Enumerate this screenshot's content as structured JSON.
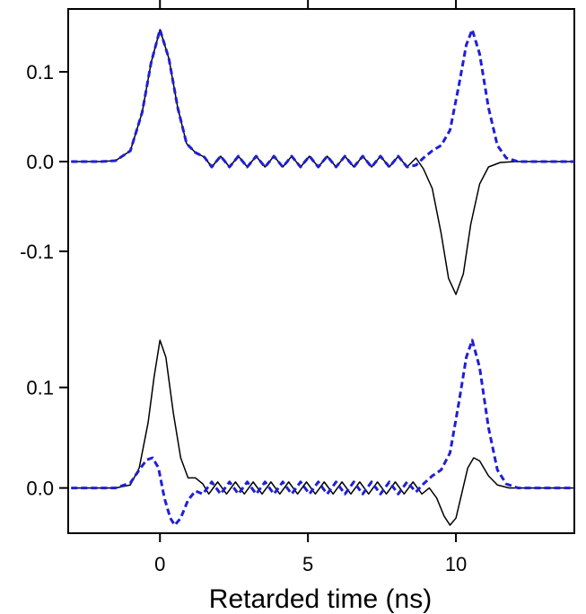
{
  "chart_data": {
    "type": "line",
    "xlabel": "Retarded time (ns)",
    "xlim": [
      -3.1,
      14.0
    ],
    "x_ticks": [
      0,
      5,
      10
    ],
    "panels": [
      {
        "ylim": [
          -0.19,
          0.17
        ],
        "y_ticks": [
          0.1,
          0.0,
          -0.1
        ],
        "series": [
          {
            "color": "#000000",
            "style": "solid",
            "points": [
              [
                -3.0,
                0
              ],
              [
                -2.0,
                0
              ],
              [
                -1.5,
                0.001
              ],
              [
                -1.0,
                0.012
              ],
              [
                -0.6,
                0.055
              ],
              [
                -0.3,
                0.11
              ],
              [
                0.0,
                0.147
              ],
              [
                0.3,
                0.115
              ],
              [
                0.6,
                0.06
              ],
              [
                0.9,
                0.02
              ],
              [
                1.2,
                0.01
              ],
              [
                1.5,
                0.005
              ],
              [
                1.75,
                -0.006
              ],
              [
                2.05,
                0.006
              ],
              [
                2.35,
                -0.006
              ],
              [
                2.65,
                0.006
              ],
              [
                2.95,
                -0.006
              ],
              [
                3.25,
                0.006
              ],
              [
                3.55,
                -0.006
              ],
              [
                3.85,
                0.006
              ],
              [
                4.15,
                -0.006
              ],
              [
                4.45,
                0.006
              ],
              [
                4.75,
                -0.006
              ],
              [
                5.05,
                0.006
              ],
              [
                5.35,
                -0.006
              ],
              [
                5.65,
                0.006
              ],
              [
                5.95,
                -0.006
              ],
              [
                6.25,
                0.006
              ],
              [
                6.55,
                -0.006
              ],
              [
                6.85,
                0.006
              ],
              [
                7.15,
                -0.006
              ],
              [
                7.45,
                0.006
              ],
              [
                7.75,
                -0.006
              ],
              [
                8.05,
                0.006
              ],
              [
                8.35,
                -0.006
              ],
              [
                8.65,
                0.004
              ],
              [
                8.9,
                -0.008
              ],
              [
                9.2,
                -0.03
              ],
              [
                9.5,
                -0.08
              ],
              [
                9.75,
                -0.13
              ],
              [
                10.0,
                -0.148
              ],
              [
                10.25,
                -0.125
              ],
              [
                10.5,
                -0.07
              ],
              [
                10.8,
                -0.025
              ],
              [
                11.1,
                -0.006
              ],
              [
                11.5,
                -0.001
              ],
              [
                12.0,
                0
              ],
              [
                14.0,
                0
              ]
            ]
          },
          {
            "color": "#1f1fd6",
            "style": "dashed",
            "points": [
              [
                -3.0,
                0
              ],
              [
                -2.0,
                0
              ],
              [
                -1.5,
                0.001
              ],
              [
                -1.0,
                0.012
              ],
              [
                -0.6,
                0.055
              ],
              [
                -0.3,
                0.11
              ],
              [
                0.0,
                0.147
              ],
              [
                0.3,
                0.115
              ],
              [
                0.6,
                0.06
              ],
              [
                0.9,
                0.02
              ],
              [
                1.2,
                0.01
              ],
              [
                1.5,
                0.005
              ],
              [
                1.75,
                -0.006
              ],
              [
                2.05,
                0.006
              ],
              [
                2.35,
                -0.006
              ],
              [
                2.65,
                0.006
              ],
              [
                2.95,
                -0.006
              ],
              [
                3.25,
                0.006
              ],
              [
                3.55,
                -0.006
              ],
              [
                3.85,
                0.006
              ],
              [
                4.15,
                -0.006
              ],
              [
                4.45,
                0.006
              ],
              [
                4.75,
                -0.006
              ],
              [
                5.05,
                0.006
              ],
              [
                5.35,
                -0.006
              ],
              [
                5.65,
                0.006
              ],
              [
                5.95,
                -0.006
              ],
              [
                6.25,
                0.006
              ],
              [
                6.55,
                -0.006
              ],
              [
                6.85,
                0.006
              ],
              [
                7.15,
                -0.006
              ],
              [
                7.45,
                0.006
              ],
              [
                7.75,
                -0.006
              ],
              [
                8.05,
                0.006
              ],
              [
                8.35,
                -0.006
              ],
              [
                8.65,
                -0.004
              ],
              [
                8.9,
                0.004
              ],
              [
                9.2,
                0.012
              ],
              [
                9.5,
                0.018
              ],
              [
                9.8,
                0.035
              ],
              [
                10.1,
                0.085
              ],
              [
                10.35,
                0.13
              ],
              [
                10.55,
                0.147
              ],
              [
                10.8,
                0.12
              ],
              [
                11.1,
                0.06
              ],
              [
                11.4,
                0.018
              ],
              [
                11.7,
                0.004
              ],
              [
                12.1,
                0
              ],
              [
                14.0,
                0
              ]
            ]
          }
        ]
      },
      {
        "ylim": [
          -0.045,
          0.155
        ],
        "y_ticks": [
          0.1,
          0.0
        ],
        "series": [
          {
            "color": "#000000",
            "style": "solid",
            "points": [
              [
                -3.0,
                0
              ],
              [
                -1.5,
                0
              ],
              [
                -1.0,
                0.003
              ],
              [
                -0.7,
                0.02
              ],
              [
                -0.4,
                0.065
              ],
              [
                -0.2,
                0.11
              ],
              [
                0.0,
                0.147
              ],
              [
                0.2,
                0.13
              ],
              [
                0.45,
                0.075
              ],
              [
                0.7,
                0.03
              ],
              [
                0.95,
                0.01
              ],
              [
                1.2,
                0.01
              ],
              [
                1.45,
                0.004
              ],
              [
                1.65,
                -0.006
              ],
              [
                1.95,
                0.006
              ],
              [
                2.25,
                -0.006
              ],
              [
                2.55,
                0.006
              ],
              [
                2.85,
                -0.006
              ],
              [
                3.15,
                0.006
              ],
              [
                3.45,
                -0.006
              ],
              [
                3.75,
                0.006
              ],
              [
                4.05,
                -0.006
              ],
              [
                4.35,
                0.006
              ],
              [
                4.65,
                -0.006
              ],
              [
                4.95,
                0.006
              ],
              [
                5.25,
                -0.006
              ],
              [
                5.55,
                0.006
              ],
              [
                5.85,
                -0.006
              ],
              [
                6.15,
                0.006
              ],
              [
                6.45,
                -0.006
              ],
              [
                6.75,
                0.006
              ],
              [
                7.05,
                -0.006
              ],
              [
                7.35,
                0.006
              ],
              [
                7.65,
                -0.006
              ],
              [
                7.95,
                0.006
              ],
              [
                8.25,
                -0.006
              ],
              [
                8.55,
                0.006
              ],
              [
                8.85,
                -0.006
              ],
              [
                9.1,
                0.0
              ],
              [
                9.35,
                -0.01
              ],
              [
                9.6,
                -0.028
              ],
              [
                9.8,
                -0.037
              ],
              [
                10.0,
                -0.03
              ],
              [
                10.2,
                -0.005
              ],
              [
                10.4,
                0.02
              ],
              [
                10.6,
                0.03
              ],
              [
                10.8,
                0.027
              ],
              [
                11.1,
                0.012
              ],
              [
                11.4,
                0.003
              ],
              [
                11.8,
                0
              ],
              [
                14.0,
                0
              ]
            ]
          },
          {
            "color": "#1f1fd6",
            "style": "dashed",
            "points": [
              [
                -3.0,
                0
              ],
              [
                -1.5,
                0
              ],
              [
                -1.0,
                0.005
              ],
              [
                -0.7,
                0.018
              ],
              [
                -0.45,
                0.028
              ],
              [
                -0.25,
                0.03
              ],
              [
                -0.05,
                0.02
              ],
              [
                0.15,
                -0.01
              ],
              [
                0.35,
                -0.03
              ],
              [
                0.5,
                -0.037
              ],
              [
                0.7,
                -0.03
              ],
              [
                0.95,
                -0.012
              ],
              [
                1.2,
                -0.003
              ],
              [
                1.45,
                -0.006
              ],
              [
                1.75,
                0.006
              ],
              [
                2.05,
                -0.006
              ],
              [
                2.35,
                0.006
              ],
              [
                2.65,
                -0.006
              ],
              [
                2.95,
                0.006
              ],
              [
                3.25,
                -0.006
              ],
              [
                3.55,
                0.006
              ],
              [
                3.85,
                -0.006
              ],
              [
                4.15,
                0.006
              ],
              [
                4.45,
                -0.006
              ],
              [
                4.75,
                0.006
              ],
              [
                5.05,
                -0.006
              ],
              [
                5.35,
                0.006
              ],
              [
                5.65,
                -0.006
              ],
              [
                5.95,
                0.006
              ],
              [
                6.25,
                -0.006
              ],
              [
                6.55,
                0.006
              ],
              [
                6.85,
                -0.006
              ],
              [
                7.15,
                0.006
              ],
              [
                7.45,
                -0.006
              ],
              [
                7.75,
                0.006
              ],
              [
                8.05,
                -0.006
              ],
              [
                8.35,
                0.006
              ],
              [
                8.65,
                -0.004
              ],
              [
                8.9,
                0.004
              ],
              [
                9.2,
                0.012
              ],
              [
                9.5,
                0.018
              ],
              [
                9.8,
                0.035
              ],
              [
                10.1,
                0.085
              ],
              [
                10.35,
                0.13
              ],
              [
                10.55,
                0.147
              ],
              [
                10.8,
                0.12
              ],
              [
                11.1,
                0.06
              ],
              [
                11.4,
                0.018
              ],
              [
                11.7,
                0.004
              ],
              [
                12.1,
                0
              ],
              [
                14.0,
                0
              ]
            ]
          }
        ]
      }
    ]
  }
}
